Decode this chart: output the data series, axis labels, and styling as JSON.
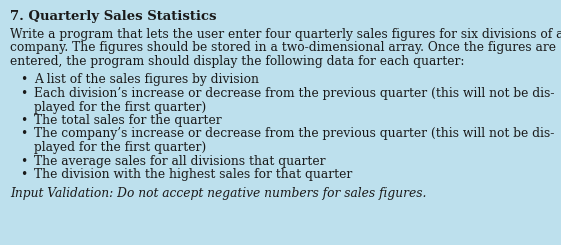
{
  "title": "7. Quarterly Sales Statistics",
  "background_color": "#bde0ed",
  "title_fontsize": 9.5,
  "body_fontsize": 8.8,
  "italic_fontsize": 8.8,
  "intro_lines": [
    "Write a program that lets the user enter four quarterly sales figures for six divisions of a",
    "company. The figures should be stored in a two-dimensional array. Once the figures are",
    "entered, the program should display the following data for each quarter:"
  ],
  "bullet_points": [
    [
      "A list of the sales figures by division"
    ],
    [
      "Each division’s increase or decrease from the previous quarter (this will not be dis-",
      "played for the first quarter)"
    ],
    [
      "The total sales for the quarter"
    ],
    [
      "The company’s increase or decrease from the previous quarter (this will not be dis-",
      "played for the first quarter)"
    ],
    [
      "The average sales for all divisions that quarter"
    ],
    [
      "The division with the highest sales for that quarter"
    ]
  ],
  "footer_text": "Input Validation: Do not accept negative numbers for sales figures.",
  "text_color": "#1a1a1a",
  "bullet_char": "•"
}
